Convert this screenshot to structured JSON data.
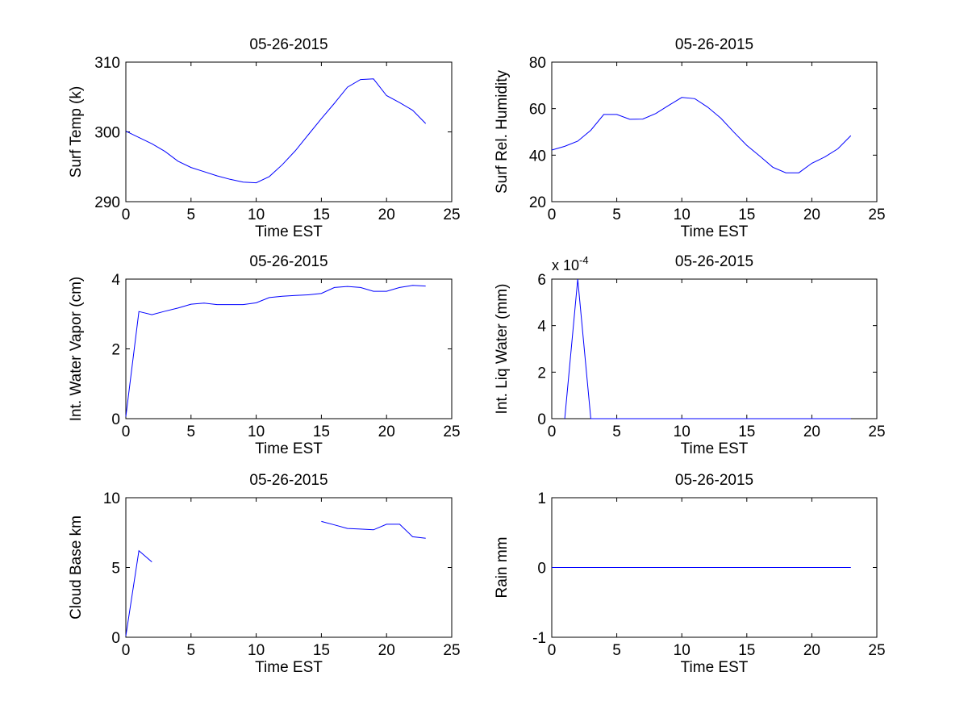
{
  "colors": {
    "background": "#ffffff",
    "axis": "#000000",
    "series": "#0000ff"
  },
  "chart_data": [
    {
      "type": "line",
      "title": "05-26-2015",
      "xlabel": "Time EST",
      "ylabel": "Surf Temp (k)",
      "xlim": [
        0,
        25
      ],
      "ylim": [
        290,
        310
      ],
      "xticks": [
        0,
        5,
        10,
        15,
        20,
        25
      ],
      "yticks": [
        290,
        300,
        310
      ],
      "xtick_labels": [
        "0",
        "5",
        "10",
        "15",
        "20",
        "25"
      ],
      "ytick_labels": [
        "290",
        "300",
        "310"
      ],
      "grid": false,
      "series": [
        {
          "x": [
            0,
            1,
            2,
            3,
            4,
            5,
            6,
            7,
            8,
            9,
            10,
            11,
            12,
            13,
            14,
            15,
            16,
            17,
            18,
            19,
            20,
            21,
            22,
            23
          ],
          "y": [
            300.1,
            299.2,
            298.3,
            297.2,
            295.8,
            294.9,
            294.3,
            293.7,
            293.2,
            292.8,
            292.7,
            293.6,
            295.3,
            297.3,
            299.6,
            301.9,
            304.1,
            306.4,
            307.5,
            307.6,
            305.2,
            304.2,
            303.1,
            301.2
          ]
        }
      ]
    },
    {
      "type": "line",
      "title": "05-26-2015",
      "xlabel": "Time EST",
      "ylabel": "Surf Rel. Humidity",
      "xlim": [
        0,
        25
      ],
      "ylim": [
        20,
        80
      ],
      "xticks": [
        0,
        5,
        10,
        15,
        20,
        25
      ],
      "yticks": [
        20,
        40,
        60,
        80
      ],
      "xtick_labels": [
        "0",
        "5",
        "10",
        "15",
        "20",
        "25"
      ],
      "ytick_labels": [
        "20",
        "40",
        "60",
        "80"
      ],
      "grid": false,
      "series": [
        {
          "x": [
            0,
            1,
            2,
            3,
            4,
            5,
            6,
            7,
            8,
            9,
            10,
            11,
            12,
            13,
            14,
            15,
            16,
            17,
            18,
            19,
            20,
            21,
            22,
            23
          ],
          "y": [
            42.2,
            43.8,
            46,
            50.7,
            57.5,
            57.5,
            55.4,
            55.5,
            57.9,
            61.4,
            64.8,
            64.3,
            60.6,
            55.9,
            49.9,
            44.2,
            39.6,
            34.8,
            32.4,
            32.4,
            36.5,
            39.2,
            42.7,
            48.4
          ]
        }
      ]
    },
    {
      "type": "line",
      "title": "05-26-2015",
      "xlabel": "Time EST",
      "ylabel": "Int. Water Vapor (cm)",
      "xlim": [
        0,
        25
      ],
      "ylim": [
        0,
        4
      ],
      "xticks": [
        0,
        5,
        10,
        15,
        20,
        25
      ],
      "yticks": [
        0,
        2,
        4
      ],
      "xtick_labels": [
        "0",
        "5",
        "10",
        "15",
        "20",
        "25"
      ],
      "ytick_labels": [
        "0",
        "2",
        "4"
      ],
      "grid": false,
      "series": [
        {
          "x": [
            0,
            1,
            2,
            3,
            4,
            5,
            6,
            7,
            8,
            9,
            10,
            11,
            12,
            13,
            14,
            15,
            16,
            17,
            18,
            19,
            20,
            21,
            22,
            23
          ],
          "y": [
            0.06,
            3.07,
            2.98,
            3.08,
            3.17,
            3.28,
            3.31,
            3.27,
            3.27,
            3.27,
            3.32,
            3.47,
            3.51,
            3.53,
            3.55,
            3.59,
            3.76,
            3.79,
            3.76,
            3.65,
            3.65,
            3.76,
            3.82,
            3.8
          ]
        }
      ]
    },
    {
      "type": "line",
      "title": "05-26-2015",
      "xlabel": "Time EST",
      "ylabel": "Int. Liq Water (mm)",
      "exponent_label": "x 10",
      "exponent_power": "-4",
      "xlim": [
        0,
        25
      ],
      "ylim": [
        0,
        6
      ],
      "xticks": [
        0,
        5,
        10,
        15,
        20,
        25
      ],
      "yticks": [
        0,
        2,
        4,
        6
      ],
      "xtick_labels": [
        "0",
        "5",
        "10",
        "15",
        "20",
        "25"
      ],
      "ytick_labels": [
        "0",
        "2",
        "4",
        "6"
      ],
      "grid": false,
      "series": [
        {
          "x": [
            1,
            2,
            3,
            4,
            5,
            6,
            7,
            8,
            9,
            10,
            11,
            12,
            13,
            14,
            15,
            16,
            17,
            18,
            19,
            20,
            21,
            22,
            23
          ],
          "y": [
            0,
            6,
            0,
            0,
            0,
            0,
            0,
            0,
            0,
            0,
            0,
            0,
            0,
            0,
            0,
            0,
            0,
            0,
            0,
            0,
            0,
            0,
            0
          ]
        }
      ]
    },
    {
      "type": "line",
      "title": "05-26-2015",
      "xlabel": "Time EST",
      "ylabel": "Cloud Base km",
      "xlim": [
        0,
        25
      ],
      "ylim": [
        0,
        10
      ],
      "xticks": [
        0,
        5,
        10,
        15,
        20,
        25
      ],
      "yticks": [
        0,
        5,
        10
      ],
      "xtick_labels": [
        "0",
        "5",
        "10",
        "15",
        "20",
        "25"
      ],
      "ytick_labels": [
        "0",
        "5",
        "10"
      ],
      "grid": false,
      "series": [
        {
          "x": [
            0,
            1,
            2
          ],
          "y": [
            0.1,
            6.2,
            5.4
          ]
        },
        {
          "x": [
            15,
            16,
            17,
            18,
            19,
            20,
            21,
            22,
            23
          ],
          "y": [
            8.3,
            8.05,
            7.8,
            7.75,
            7.7,
            8.1,
            8.1,
            7.2,
            7.1
          ]
        }
      ]
    },
    {
      "type": "line",
      "title": "05-26-2015",
      "xlabel": "Time EST",
      "ylabel": "Rain mm",
      "xlim": [
        0,
        25
      ],
      "ylim": [
        -1,
        1
      ],
      "xticks": [
        0,
        5,
        10,
        15,
        20,
        25
      ],
      "yticks": [
        -1,
        0,
        1
      ],
      "xtick_labels": [
        "0",
        "5",
        "10",
        "15",
        "20",
        "25"
      ],
      "ytick_labels": [
        "-1",
        "0",
        "1"
      ],
      "grid": false,
      "series": [
        {
          "x": [
            0,
            23
          ],
          "y": [
            0,
            0
          ]
        }
      ]
    }
  ]
}
